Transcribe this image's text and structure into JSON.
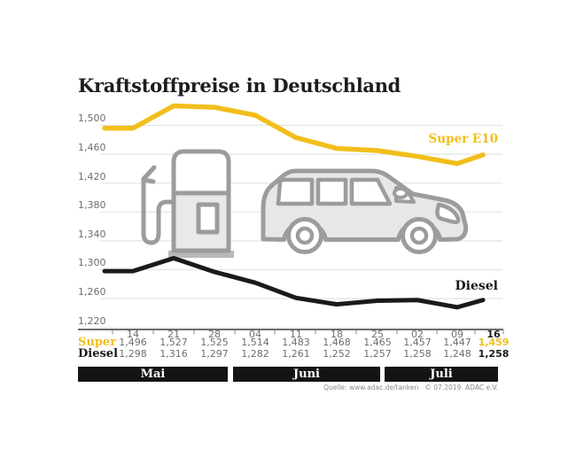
{
  "title": "Kraftstoffpreise in Deutschland",
  "source": "Quelle: www.adac.de/tanken   © 07.2019  ADAC e.V.",
  "colors": {
    "super_yellow": "#F2BE1B",
    "diesel_black": "#1A1A1A",
    "grid_gray": "#E4E4E4",
    "axis_dark": "#3C3C3C",
    "tick_gray": "#8C8C8C",
    "icon_gray": "#9C9C9C",
    "text_gray": "#6F6E6E",
    "month_bar_black": "#141414"
  },
  "chart_data": {
    "type": "line",
    "title": "Kraftstoffpreise in Deutschland",
    "x_labels": [
      "14",
      "21",
      "28",
      "04",
      "11",
      "18",
      "25",
      "02",
      "09",
      "16"
    ],
    "month_groups": [
      {
        "label": "Mai",
        "dates": [
          "14",
          "21",
          "28"
        ]
      },
      {
        "label": "Juni",
        "dates": [
          "04",
          "11",
          "18",
          "25"
        ]
      },
      {
        "label": "Juli",
        "dates": [
          "02",
          "09",
          "16"
        ]
      }
    ],
    "y_ticks": [
      "1,500",
      "1,460",
      "1,420",
      "1,380",
      "1,340",
      "1,300",
      "1,260",
      "1,220"
    ],
    "y_tick_values": [
      1500,
      1460,
      1420,
      1380,
      1340,
      1300,
      1260,
      1220
    ],
    "ylim": [
      1220,
      1500
    ],
    "grid": true,
    "series": [
      {
        "name": "Super E10",
        "color": "#F2BE1B",
        "values": [
          1496,
          1527,
          1525,
          1514,
          1483,
          1468,
          1465,
          1457,
          1447,
          1459
        ]
      },
      {
        "name": "Diesel",
        "color": "#1A1A1A",
        "values": [
          1298,
          1316,
          1297,
          1282,
          1261,
          1252,
          1257,
          1258,
          1248,
          1258
        ]
      }
    ],
    "legend": {
      "super_label": "Super E10",
      "diesel_label": "Diesel",
      "position": "inline-right"
    }
  },
  "table": {
    "dates": [
      "14",
      "21",
      "28",
      "04",
      "11",
      "18",
      "25",
      "02",
      "09",
      "16"
    ],
    "rows": [
      {
        "label": "Super",
        "values": [
          "1,496",
          "1,527",
          "1,525",
          "1,514",
          "1,483",
          "1,468",
          "1,465",
          "1,457",
          "1,447",
          "1,459"
        ]
      },
      {
        "label": "Diesel",
        "values": [
          "1,298",
          "1,316",
          "1,297",
          "1,282",
          "1,261",
          "1,252",
          "1,257",
          "1,258",
          "1,248",
          "1,258"
        ]
      }
    ],
    "months": [
      "Mai",
      "Juni",
      "Juli"
    ]
  }
}
